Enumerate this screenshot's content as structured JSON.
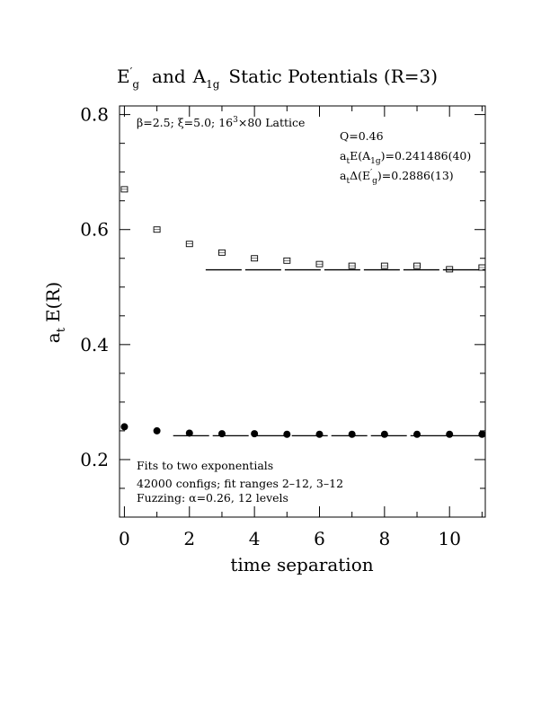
{
  "chart_data": {
    "type": "scatter",
    "title_parts": {
      "sym1": "E",
      "sym1_prime": "′",
      "sym1_sub": "g",
      "conj": "and",
      "sym2": "A",
      "sym2_sub": "1g",
      "rest": "Static Potentials (R=3)"
    },
    "xlabel": "time separation",
    "ylabel_parts": {
      "main": "a",
      "sub": "t",
      "rest": "E(R)"
    },
    "xlim": [
      -0.15,
      11.1
    ],
    "ylim": [
      0.1,
      0.815
    ],
    "x_ticks": [
      0,
      2,
      4,
      6,
      8,
      10
    ],
    "x_tick_labels": [
      "0",
      "2",
      "4",
      "6",
      "8",
      "10"
    ],
    "y_ticks": [
      0.2,
      0.4,
      0.6,
      0.8
    ],
    "y_tick_labels": [
      "0.2",
      "0.4",
      "0.6",
      "0.8"
    ],
    "x_minor_step": 1,
    "y_minor_step": 0.05,
    "grid": false,
    "series": [
      {
        "marker": "open-square",
        "x": [
          0,
          1,
          2,
          3,
          4,
          5,
          6,
          7,
          8,
          9,
          10,
          11
        ],
        "y": [
          0.67,
          0.6,
          0.575,
          0.56,
          0.55,
          0.546,
          0.54,
          0.537,
          0.537,
          0.537,
          0.531,
          0.534
        ]
      },
      {
        "marker": "filled-circle",
        "x": [
          0,
          1,
          2,
          3,
          4,
          5,
          6,
          7,
          8,
          9,
          10,
          11
        ],
        "y": [
          0.257,
          0.25,
          0.246,
          0.245,
          0.245,
          0.244,
          0.244,
          0.244,
          0.244,
          0.244,
          0.244,
          0.244
        ]
      }
    ],
    "fit_lines": [
      {
        "x_range": [
          2.5,
          11.1
        ],
        "y": 0.53,
        "style": "long-dash"
      },
      {
        "x_range": [
          1.5,
          11.1
        ],
        "y": 0.2415,
        "style": "long-dash"
      }
    ],
    "annotations": {
      "top_left": {
        "beta": "β",
        "beta_val": "=2.5; ",
        "xi": "ξ",
        "xi_val": "=5.0; 16",
        "xi_exp": "3",
        "lattice": "×80 Lattice"
      },
      "q_line": "Q=0.46",
      "energy_line": {
        "a": "a",
        "a_sub": "t",
        "e": "E(A",
        "e_sub": "1g",
        "val": ")=0.241486(40)"
      },
      "delta_line": {
        "a": "a",
        "a_sub": "t",
        "d": "Δ(E",
        "d_prime": "′",
        "d_sub": "g",
        "val": ")=0.2886(13)"
      },
      "bottom": [
        "Fits to two exponentials",
        "42000 configs; fit ranges 2–12, 3–12",
        "Fuzzing: α=0.26, 12 levels"
      ]
    }
  }
}
